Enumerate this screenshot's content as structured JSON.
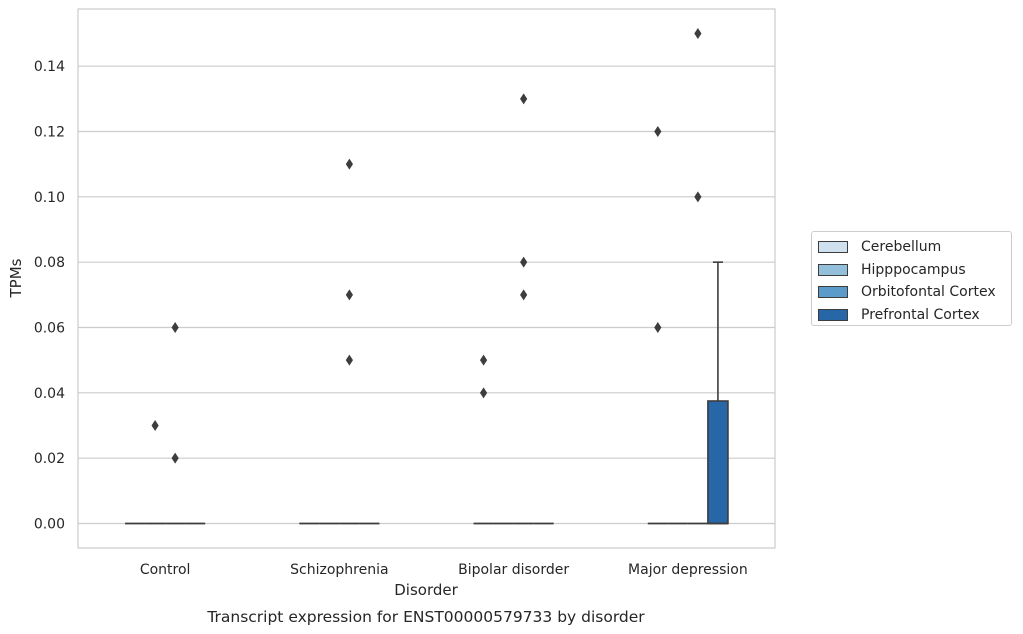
{
  "chart_data": {
    "type": "box",
    "title": "Transcript expression for ENST00000579733 by disorder",
    "xlabel": "Disorder",
    "ylabel": "TPMs",
    "ylim": [
      -0.0075,
      0.1575
    ],
    "yticks": [
      0.0,
      0.02,
      0.04,
      0.06,
      0.08,
      0.1,
      0.12,
      0.14
    ],
    "ytick_labels": [
      "0.00",
      "0.02",
      "0.04",
      "0.06",
      "0.08",
      "0.10",
      "0.12",
      "0.14"
    ],
    "categories": [
      "Control",
      "Schizophrenia",
      "Bipolar disorder",
      "Major depression"
    ],
    "grid": "horizontal",
    "legend_position": "right",
    "series": [
      {
        "name": "Cerebellum",
        "color": "#cfe0ee",
        "boxes": [
          {
            "q1": 0,
            "median": 0,
            "q3": 0,
            "whisker_low": 0,
            "whisker_high": 0,
            "outliers": []
          },
          {
            "q1": 0,
            "median": 0,
            "q3": 0,
            "whisker_low": 0,
            "whisker_high": 0,
            "outliers": []
          },
          {
            "q1": 0,
            "median": 0,
            "q3": 0,
            "whisker_low": 0,
            "whisker_high": 0,
            "outliers": [
              0.05,
              0.04
            ]
          },
          {
            "q1": 0,
            "median": 0,
            "q3": 0,
            "whisker_low": 0,
            "whisker_high": 0,
            "outliers": [
              0.06,
              0.12
            ]
          }
        ]
      },
      {
        "name": "Hipppocampus",
        "color": "#94bfda",
        "boxes": [
          {
            "q1": 0,
            "median": 0,
            "q3": 0,
            "whisker_low": 0,
            "whisker_high": 0,
            "outliers": [
              0.03
            ]
          },
          {
            "q1": 0,
            "median": 0,
            "q3": 0,
            "whisker_low": 0,
            "whisker_high": 0,
            "outliers": []
          },
          {
            "q1": 0,
            "median": 0,
            "q3": 0,
            "whisker_low": 0,
            "whisker_high": 0,
            "outliers": []
          },
          {
            "q1": 0,
            "median": 0,
            "q3": 0,
            "whisker_low": 0,
            "whisker_high": 0,
            "outliers": []
          }
        ]
      },
      {
        "name": "Orbitofontal Cortex",
        "color": "#5b9bc9",
        "boxes": [
          {
            "q1": 0,
            "median": 0,
            "q3": 0,
            "whisker_low": 0,
            "whisker_high": 0,
            "outliers": [
              0.06,
              0.02
            ]
          },
          {
            "q1": 0,
            "median": 0,
            "q3": 0,
            "whisker_low": 0,
            "whisker_high": 0,
            "outliers": [
              0.11,
              0.07,
              0.05
            ]
          },
          {
            "q1": 0,
            "median": 0,
            "q3": 0,
            "whisker_low": 0,
            "whisker_high": 0,
            "outliers": [
              0.13,
              0.08,
              0.07
            ]
          },
          {
            "q1": 0,
            "median": 0,
            "q3": 0,
            "whisker_low": 0,
            "whisker_high": 0,
            "outliers": [
              0.15,
              0.1
            ]
          }
        ]
      },
      {
        "name": "Prefrontal Cortex",
        "color": "#2767a8",
        "boxes": [
          {
            "q1": 0,
            "median": 0,
            "q3": 0,
            "whisker_low": 0,
            "whisker_high": 0,
            "outliers": []
          },
          {
            "q1": 0,
            "median": 0,
            "q3": 0,
            "whisker_low": 0,
            "whisker_high": 0,
            "outliers": []
          },
          {
            "q1": 0,
            "median": 0,
            "q3": 0,
            "whisker_low": 0,
            "whisker_high": 0,
            "outliers": []
          },
          {
            "q1": 0,
            "median": 0,
            "q3": 0.0375,
            "whisker_low": 0,
            "whisker_high": 0.08,
            "outliers": []
          }
        ]
      }
    ]
  }
}
